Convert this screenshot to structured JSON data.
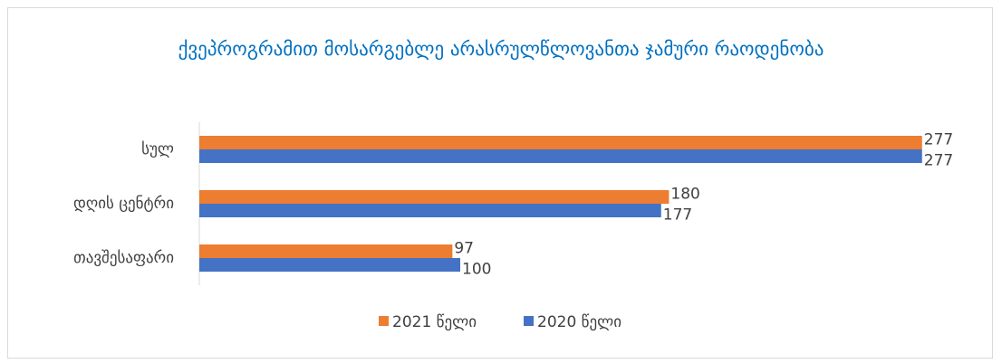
{
  "chart_data": {
    "type": "hbar",
    "title": "ქვეპროგრამით მოსარგებლე არასრულწლოვანთა ჯამური რაოდენობა",
    "categories": [
      "სულ",
      "დღის ცენტრი",
      "თავშესაფარი"
    ],
    "series": [
      {
        "name": "2021 წელი",
        "color": "#ED7D31",
        "values": [
          277,
          180,
          97
        ]
      },
      {
        "name": "2020 წელი",
        "color": "#4472C4",
        "values": [
          277,
          177,
          100
        ]
      }
    ],
    "legend": "bottom"
  }
}
